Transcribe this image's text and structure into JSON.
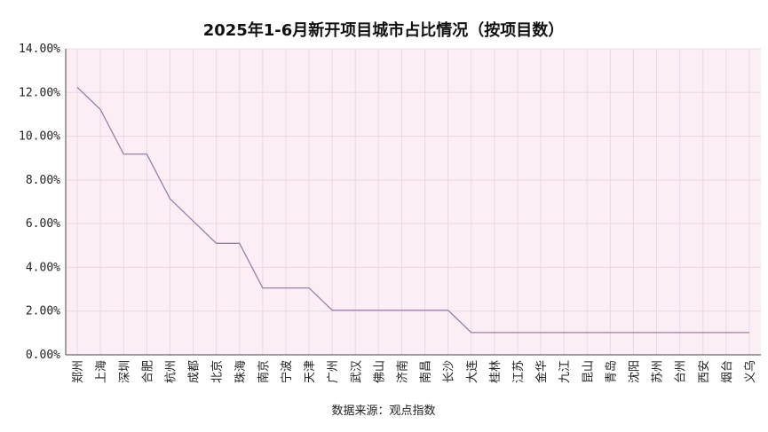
{
  "chart_data": {
    "type": "line",
    "title": "2025年1-6月新开项目城市占比情况（按项目数）",
    "source_note": "数据来源：观点指数",
    "categories": [
      "郑州",
      "上海",
      "深圳",
      "合肥",
      "杭州",
      "成都",
      "北京",
      "珠海",
      "南京",
      "宁波",
      "天津",
      "广州",
      "武汉",
      "佛山",
      "济南",
      "南昌",
      "长沙",
      "大连",
      "桂林",
      "江苏",
      "金华",
      "九江",
      "昆山",
      "青岛",
      "沈阳",
      "苏州",
      "台州",
      "西安",
      "烟台",
      "义乌"
    ],
    "series": [
      {
        "values": [
          12.24,
          11.22,
          9.18,
          9.18,
          7.14,
          6.12,
          5.1,
          5.1,
          3.06,
          3.06,
          3.06,
          2.04,
          2.04,
          2.04,
          2.04,
          2.04,
          2.04,
          1.02,
          1.02,
          1.02,
          1.02,
          1.02,
          1.02,
          1.02,
          1.02,
          1.02,
          1.02,
          1.02,
          1.02,
          1.02
        ]
      }
    ],
    "ylim": [
      0,
      14
    ],
    "yticks": [
      "0.00%",
      "2.00%",
      "4.00%",
      "6.00%",
      "8.00%",
      "10.00%",
      "12.00%",
      "14.00%"
    ],
    "ytick_values": [
      0,
      2,
      4,
      6,
      8,
      10,
      12,
      14
    ],
    "grid": true,
    "colors": {
      "line": "#9b7fa6",
      "plot_bg": "#fbeef4",
      "grid": "#ead8e3"
    }
  }
}
